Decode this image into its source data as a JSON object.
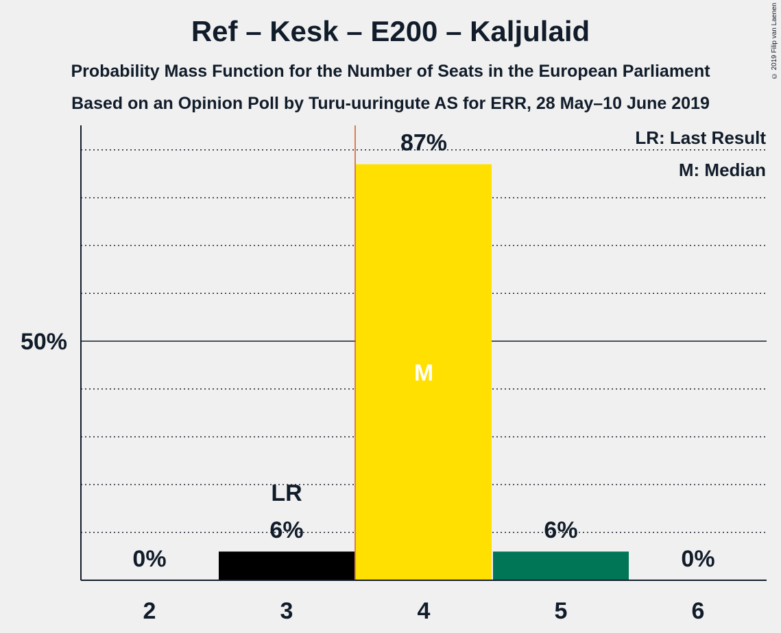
{
  "title": "Ref – Kesk – E200 – Kaljulaid",
  "subtitle1": "Probability Mass Function for the Number of Seats in the European Parliament",
  "subtitle2": "Based on an Opinion Poll by Turu-uuringute AS for ERR, 28 May–10 June 2019",
  "copyright": "© 2019 Filip van Laenen",
  "legend": {
    "last_result": "LR: Last Result",
    "median": "M: Median"
  },
  "colors": {
    "background": "#f0f0f0",
    "text": "#111c2a",
    "bar_default": "#000000",
    "bar_median": "#ffe000",
    "bar_upper": "#007656",
    "last_result_line": "#d4551e"
  },
  "chart_data": {
    "type": "bar",
    "categories": [
      "2",
      "3",
      "4",
      "5",
      "6"
    ],
    "values": [
      0,
      6,
      87,
      6,
      0
    ],
    "value_labels": [
      "0%",
      "6%",
      "87%",
      "6%",
      "0%"
    ],
    "bar_colors": [
      "#000000",
      "#000000",
      "#ffe000",
      "#007656",
      "#000000"
    ],
    "ylim": [
      0,
      95
    ],
    "y_tick_label": "50%",
    "y_tick_value": 50,
    "grid": "dotted every 10%",
    "last_result": {
      "category": "3",
      "label": "LR"
    },
    "median": {
      "category": "4",
      "label": "M"
    },
    "legend_position": "top-right"
  }
}
